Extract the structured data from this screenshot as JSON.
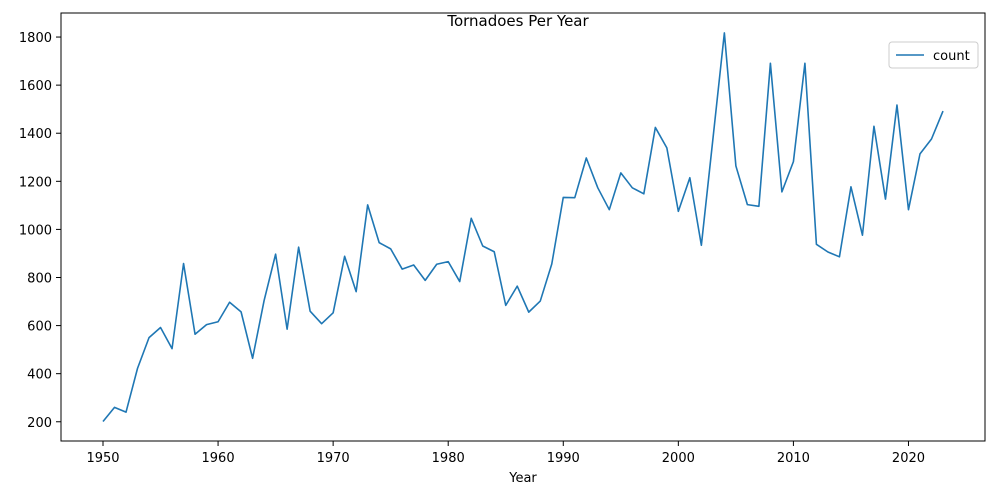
{
  "chart_data": {
    "type": "line",
    "title": "Tornadoes Per Year",
    "xlabel": "Year",
    "ylabel": "",
    "xlim": [
      1946.35,
      2026.65
    ],
    "ylim": [
      120,
      1900
    ],
    "xticks": [
      1950,
      1960,
      1970,
      1980,
      1990,
      2000,
      2010,
      2020
    ],
    "yticks": [
      200,
      400,
      600,
      800,
      1000,
      1200,
      1400,
      1600,
      1800
    ],
    "grid": false,
    "legend_position": "top-right",
    "series_color": "#1f77b4",
    "series": [
      {
        "name": "count",
        "x": [
          1950,
          1951,
          1952,
          1953,
          1954,
          1955,
          1956,
          1957,
          1958,
          1959,
          1960,
          1961,
          1962,
          1963,
          1964,
          1965,
          1966,
          1967,
          1968,
          1969,
          1970,
          1971,
          1972,
          1973,
          1974,
          1975,
          1976,
          1977,
          1978,
          1979,
          1980,
          1981,
          1982,
          1983,
          1984,
          1985,
          1986,
          1987,
          1988,
          1989,
          1990,
          1991,
          1992,
          1993,
          1994,
          1995,
          1996,
          1997,
          1998,
          1999,
          2000,
          2001,
          2002,
          2003,
          2004,
          2005,
          2006,
          2007,
          2008,
          2009,
          2010,
          2011,
          2012,
          2013,
          2014,
          2015,
          2016,
          2017,
          2018,
          2019,
          2020,
          2021,
          2022,
          2023
        ],
        "values": [
          201,
          260,
          240,
          422,
          550,
          592,
          504,
          858,
          564,
          604,
          616,
          697,
          657,
          464,
          704,
          897,
          585,
          926,
          660,
          608,
          653,
          888,
          741,
          1102,
          945,
          919,
          835,
          852,
          788,
          855,
          866,
          783,
          1046,
          931,
          907,
          684,
          764,
          656,
          702,
          856,
          1133,
          1132,
          1297,
          1173,
          1082,
          1235,
          1173,
          1148,
          1424,
          1339,
          1075,
          1215,
          934,
          1374,
          1817,
          1264,
          1103,
          1096,
          1691,
          1156,
          1282,
          1691,
          938,
          906,
          886,
          1177,
          976,
          1429,
          1126,
          1517,
          1082,
          1314,
          1376,
          1492
        ]
      }
    ]
  }
}
